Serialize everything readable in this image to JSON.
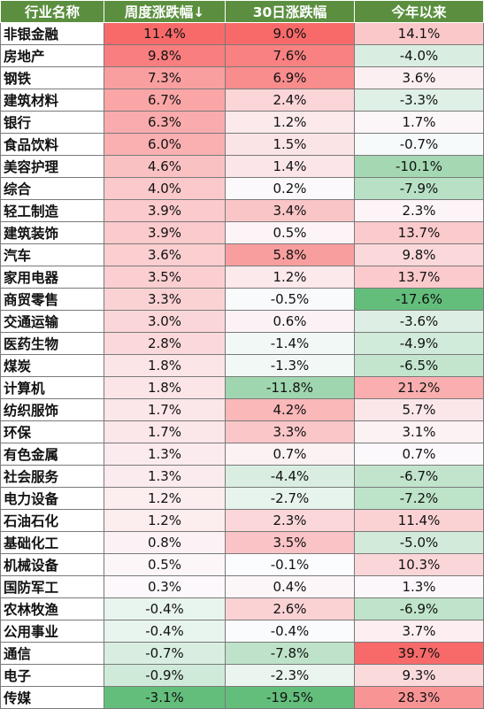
{
  "headers": [
    "行业名称",
    "周度涨跌幅↓",
    "30日涨跌幅",
    "今年以来"
  ],
  "colors": {
    "header_bg": "#5b8f3f",
    "positive_max": "#f86a6a",
    "negative_max": "#63be7b",
    "neutral": "#fcfcff"
  },
  "rows": [
    {
      "name": "非银金融",
      "weekly": "11.4%",
      "d30": "9.0%",
      "ytd": "14.1%"
    },
    {
      "name": "房地产",
      "weekly": "9.8%",
      "d30": "7.6%",
      "ytd": "-4.0%"
    },
    {
      "name": "钢铁",
      "weekly": "7.3%",
      "d30": "6.9%",
      "ytd": "3.6%"
    },
    {
      "name": "建筑材料",
      "weekly": "6.7%",
      "d30": "2.4%",
      "ytd": "-3.3%"
    },
    {
      "name": "银行",
      "weekly": "6.3%",
      "d30": "1.2%",
      "ytd": "1.7%"
    },
    {
      "name": "食品饮料",
      "weekly": "6.0%",
      "d30": "1.5%",
      "ytd": "-0.7%"
    },
    {
      "name": "美容护理",
      "weekly": "4.6%",
      "d30": "1.4%",
      "ytd": "-10.1%"
    },
    {
      "name": "综合",
      "weekly": "4.0%",
      "d30": "0.2%",
      "ytd": "-7.9%"
    },
    {
      "name": "轻工制造",
      "weekly": "3.9%",
      "d30": "3.4%",
      "ytd": "2.3%"
    },
    {
      "name": "建筑装饰",
      "weekly": "3.9%",
      "d30": "0.5%",
      "ytd": "13.7%"
    },
    {
      "name": "汽车",
      "weekly": "3.6%",
      "d30": "5.8%",
      "ytd": "9.8%"
    },
    {
      "name": "家用电器",
      "weekly": "3.5%",
      "d30": "1.2%",
      "ytd": "13.7%"
    },
    {
      "name": "商贸零售",
      "weekly": "3.3%",
      "d30": "-0.5%",
      "ytd": "-17.6%"
    },
    {
      "name": "交通运输",
      "weekly": "3.0%",
      "d30": "0.6%",
      "ytd": "-3.6%"
    },
    {
      "name": "医药生物",
      "weekly": "2.8%",
      "d30": "-1.4%",
      "ytd": "-4.9%"
    },
    {
      "name": "煤炭",
      "weekly": "1.8%",
      "d30": "-1.3%",
      "ytd": "-6.5%"
    },
    {
      "name": "计算机",
      "weekly": "1.8%",
      "d30": "-11.8%",
      "ytd": "21.2%"
    },
    {
      "name": "纺织服饰",
      "weekly": "1.7%",
      "d30": "4.2%",
      "ytd": "5.7%"
    },
    {
      "name": "环保",
      "weekly": "1.7%",
      "d30": "3.3%",
      "ytd": "3.1%"
    },
    {
      "name": "有色金属",
      "weekly": "1.3%",
      "d30": "0.7%",
      "ytd": "0.7%"
    },
    {
      "name": "社会服务",
      "weekly": "1.3%",
      "d30": "-4.4%",
      "ytd": "-6.7%"
    },
    {
      "name": "电力设备",
      "weekly": "1.2%",
      "d30": "-2.7%",
      "ytd": "-7.2%"
    },
    {
      "name": "石油石化",
      "weekly": "1.2%",
      "d30": "2.3%",
      "ytd": "11.4%"
    },
    {
      "name": "基础化工",
      "weekly": "0.8%",
      "d30": "3.5%",
      "ytd": "-5.0%"
    },
    {
      "name": "机械设备",
      "weekly": "0.5%",
      "d30": "-0.1%",
      "ytd": "10.3%"
    },
    {
      "name": "国防军工",
      "weekly": "0.3%",
      "d30": "0.4%",
      "ytd": "1.3%"
    },
    {
      "name": "农林牧渔",
      "weekly": "-0.4%",
      "d30": "2.6%",
      "ytd": "-6.9%"
    },
    {
      "name": "公用事业",
      "weekly": "-0.4%",
      "d30": "-0.4%",
      "ytd": "3.7%"
    },
    {
      "name": "通信",
      "weekly": "-0.7%",
      "d30": "-7.8%",
      "ytd": "39.7%"
    },
    {
      "name": "电子",
      "weekly": "-0.9%",
      "d30": "-2.3%",
      "ytd": "9.3%"
    },
    {
      "name": "传媒",
      "weekly": "-3.1%",
      "d30": "-19.5%",
      "ytd": "28.3%"
    }
  ]
}
